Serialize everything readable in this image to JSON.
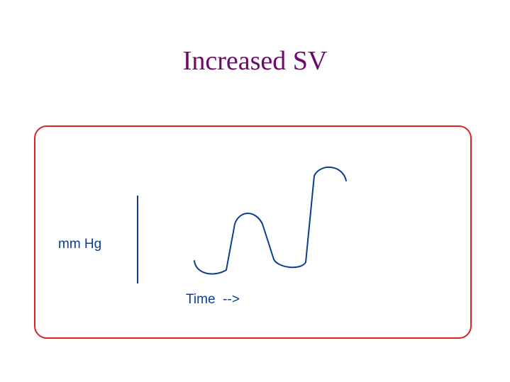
{
  "title": "Increased SV",
  "axis": {
    "y_label": "mm Hg",
    "x_label": "Time  -->"
  },
  "colors": {
    "title": "#6b0a6b",
    "panel_border": "#e02020",
    "curve": "#0b3d91"
  }
}
